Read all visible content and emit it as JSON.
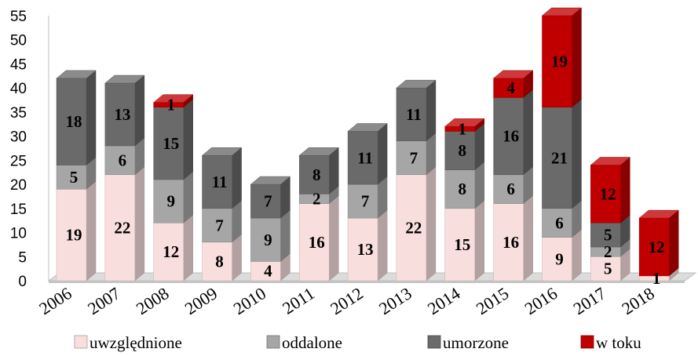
{
  "chart_data": {
    "type": "bar",
    "stacked": true,
    "style": "3d",
    "categories": [
      "2006",
      "2007",
      "2008",
      "2009",
      "2010",
      "2011",
      "2012",
      "2013",
      "2014",
      "2015",
      "2016",
      "2017",
      "2018"
    ],
    "series": [
      {
        "name": "uwzględnione",
        "color": "#f9dede",
        "values": [
          19,
          22,
          12,
          8,
          4,
          16,
          13,
          22,
          15,
          16,
          9,
          5,
          1
        ]
      },
      {
        "name": "oddalone",
        "color": "#a6a6a6",
        "values": [
          5,
          6,
          9,
          7,
          9,
          2,
          7,
          7,
          8,
          6,
          6,
          2,
          0
        ]
      },
      {
        "name": "umorzone",
        "color": "#6a6a6a",
        "values": [
          18,
          13,
          15,
          11,
          7,
          8,
          11,
          11,
          8,
          16,
          21,
          5,
          0
        ]
      },
      {
        "name": "w toku",
        "color": "#c00000",
        "values": [
          0,
          0,
          1,
          0,
          0,
          0,
          0,
          0,
          1,
          4,
          19,
          12,
          12
        ]
      }
    ],
    "ylim": [
      0,
      55
    ],
    "yticks": [
      0,
      5,
      10,
      15,
      20,
      25,
      30,
      35,
      40,
      45,
      50,
      55
    ],
    "grid": false,
    "legend": "bottom"
  }
}
